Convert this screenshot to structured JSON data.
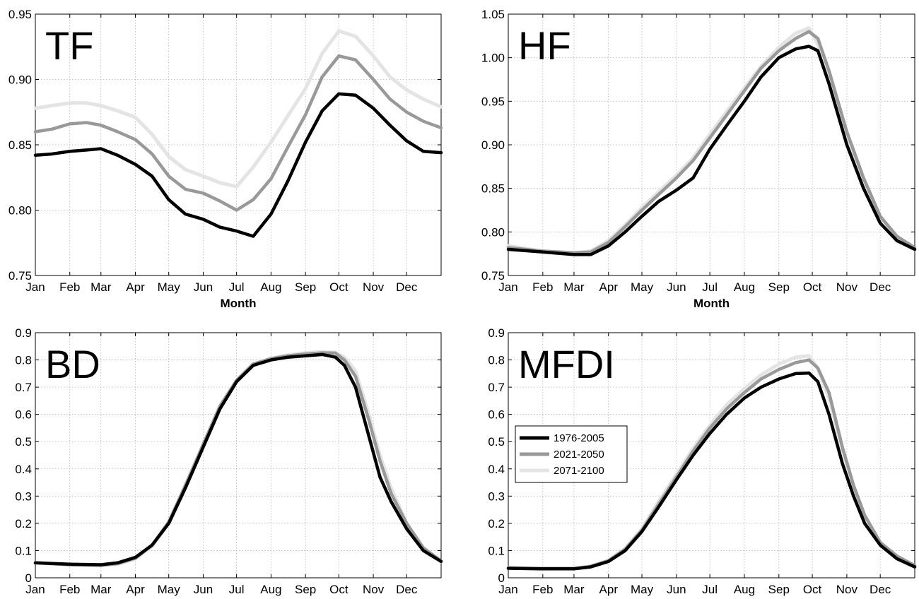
{
  "chart_data": [
    {
      "type": "line",
      "panel_label": "TF",
      "xlabel": "Month",
      "ylabel": "",
      "x_ticks": [
        "Jan",
        "Feb",
        "Mar",
        "Apr",
        "May",
        "Jun",
        "Jul",
        "Aug",
        "Sep",
        "Oct",
        "Nov",
        "Dec"
      ],
      "ylim": [
        0.75,
        0.95
      ],
      "y_ticks": [
        "0.75",
        "0.80",
        "0.85",
        "0.90",
        "0.95"
      ],
      "grid": true,
      "series": [
        {
          "name": "1976-2005",
          "color": "#000000",
          "x": [
            0,
            15,
            31,
            46,
            59,
            74,
            90,
            105,
            120,
            135,
            151,
            166,
            181,
            196,
            212,
            227,
            243,
            258,
            273,
            288,
            304,
            319,
            334,
            349,
            365
          ],
          "y": [
            0.842,
            0.843,
            0.845,
            0.846,
            0.847,
            0.842,
            0.835,
            0.826,
            0.808,
            0.797,
            0.793,
            0.787,
            0.784,
            0.78,
            0.797,
            0.822,
            0.852,
            0.876,
            0.889,
            0.888,
            0.878,
            0.865,
            0.853,
            0.845,
            0.844
          ]
        },
        {
          "name": "2021-2050",
          "color": "#999999",
          "x": [
            0,
            15,
            31,
            46,
            59,
            74,
            90,
            105,
            120,
            135,
            151,
            166,
            181,
            196,
            212,
            227,
            243,
            258,
            273,
            288,
            304,
            319,
            334,
            349,
            365
          ],
          "y": [
            0.86,
            0.862,
            0.866,
            0.867,
            0.865,
            0.86,
            0.854,
            0.843,
            0.826,
            0.816,
            0.813,
            0.807,
            0.8,
            0.808,
            0.824,
            0.848,
            0.873,
            0.902,
            0.918,
            0.915,
            0.9,
            0.885,
            0.875,
            0.868,
            0.863
          ]
        },
        {
          "name": "2071-2100",
          "color": "#e4e4e4",
          "x": [
            0,
            15,
            31,
            46,
            59,
            74,
            90,
            105,
            120,
            135,
            151,
            166,
            181,
            196,
            212,
            227,
            243,
            258,
            273,
            288,
            304,
            319,
            334,
            349,
            365
          ],
          "y": [
            0.878,
            0.88,
            0.882,
            0.882,
            0.88,
            0.876,
            0.871,
            0.858,
            0.841,
            0.831,
            0.826,
            0.821,
            0.818,
            0.833,
            0.852,
            0.872,
            0.893,
            0.92,
            0.937,
            0.933,
            0.918,
            0.902,
            0.892,
            0.885,
            0.879
          ]
        }
      ]
    },
    {
      "type": "line",
      "panel_label": "HF",
      "xlabel": "Month",
      "ylabel": "",
      "x_ticks": [
        "Jan",
        "Feb",
        "Mar",
        "Apr",
        "May",
        "Jun",
        "Jul",
        "Aug",
        "Sep",
        "Oct",
        "Nov",
        "Dec"
      ],
      "ylim": [
        0.75,
        1.05
      ],
      "y_ticks": [
        "0.75",
        "0.80",
        "0.85",
        "0.90",
        "0.95",
        "1.00",
        "1.05"
      ],
      "grid": true,
      "series": [
        {
          "name": "1976-2005",
          "color": "#000000",
          "x": [
            0,
            31,
            59,
            74,
            90,
            105,
            120,
            135,
            151,
            166,
            181,
            196,
            212,
            227,
            243,
            258,
            270,
            278,
            288,
            304,
            319,
            334,
            349,
            365
          ],
          "y": [
            0.78,
            0.777,
            0.774,
            0.774,
            0.784,
            0.8,
            0.818,
            0.835,
            0.848,
            0.862,
            0.895,
            0.922,
            0.95,
            0.978,
            1.0,
            1.01,
            1.013,
            1.008,
            0.97,
            0.9,
            0.85,
            0.81,
            0.79,
            0.78
          ]
        },
        {
          "name": "2021-2050",
          "color": "#999999",
          "x": [
            0,
            31,
            59,
            74,
            90,
            105,
            120,
            135,
            151,
            166,
            181,
            196,
            212,
            227,
            243,
            258,
            270,
            278,
            288,
            304,
            319,
            334,
            349,
            365
          ],
          "y": [
            0.782,
            0.778,
            0.776,
            0.777,
            0.788,
            0.806,
            0.825,
            0.843,
            0.862,
            0.882,
            0.908,
            0.934,
            0.962,
            0.988,
            1.008,
            1.022,
            1.03,
            1.022,
            0.985,
            0.915,
            0.862,
            0.818,
            0.795,
            0.782
          ]
        },
        {
          "name": "2071-2100",
          "color": "#e4e4e4",
          "x": [
            0,
            31,
            59,
            74,
            90,
            105,
            120,
            135,
            151,
            166,
            181,
            196,
            212,
            227,
            243,
            258,
            270,
            278,
            288,
            304,
            319,
            334,
            349,
            365
          ],
          "y": [
            0.784,
            0.778,
            0.776,
            0.778,
            0.79,
            0.808,
            0.828,
            0.846,
            0.865,
            0.885,
            0.912,
            0.938,
            0.965,
            0.99,
            1.012,
            1.028,
            1.034,
            1.015,
            0.978,
            0.908,
            0.858,
            0.814,
            0.79,
            0.78
          ]
        }
      ]
    },
    {
      "type": "line",
      "panel_label": "BD",
      "xlabel": "",
      "ylabel": "",
      "x_ticks": [
        "Jan",
        "Feb",
        "Mar",
        "Apr",
        "May",
        "Jun",
        "Jul",
        "Aug",
        "Sep",
        "Oct",
        "Nov",
        "Dec"
      ],
      "ylim": [
        0,
        0.9
      ],
      "y_ticks": [
        "0",
        "0.1",
        "0.2",
        "0.3",
        "0.4",
        "0.5",
        "0.6",
        "0.7",
        "0.8",
        "0.9"
      ],
      "grid": true,
      "series": [
        {
          "name": "1976-2005",
          "color": "#000000",
          "x": [
            0,
            31,
            59,
            74,
            90,
            105,
            120,
            135,
            151,
            166,
            181,
            196,
            212,
            227,
            243,
            258,
            270,
            278,
            288,
            300,
            310,
            320,
            334,
            349,
            365
          ],
          "y": [
            0.055,
            0.05,
            0.048,
            0.055,
            0.075,
            0.12,
            0.2,
            0.33,
            0.48,
            0.62,
            0.72,
            0.78,
            0.8,
            0.81,
            0.815,
            0.82,
            0.81,
            0.78,
            0.7,
            0.52,
            0.37,
            0.28,
            0.18,
            0.1,
            0.06
          ]
        },
        {
          "name": "2021-2050",
          "color": "#999999",
          "x": [
            0,
            31,
            59,
            74,
            90,
            105,
            120,
            135,
            151,
            166,
            181,
            196,
            212,
            227,
            243,
            258,
            270,
            278,
            288,
            300,
            310,
            320,
            334,
            349,
            365
          ],
          "y": [
            0.055,
            0.048,
            0.046,
            0.052,
            0.072,
            0.12,
            0.205,
            0.34,
            0.49,
            0.63,
            0.725,
            0.785,
            0.805,
            0.815,
            0.822,
            0.826,
            0.825,
            0.8,
            0.74,
            0.58,
            0.43,
            0.31,
            0.2,
            0.11,
            0.062
          ]
        },
        {
          "name": "2071-2100",
          "color": "#e4e4e4",
          "x": [
            0,
            31,
            59,
            74,
            90,
            105,
            120,
            135,
            151,
            166,
            181,
            196,
            212,
            227,
            243,
            258,
            270,
            278,
            288,
            300,
            310,
            320,
            334,
            349,
            365
          ],
          "y": [
            0.055,
            0.048,
            0.046,
            0.05,
            0.07,
            0.115,
            0.2,
            0.335,
            0.485,
            0.625,
            0.725,
            0.785,
            0.805,
            0.818,
            0.826,
            0.83,
            0.828,
            0.81,
            0.76,
            0.6,
            0.45,
            0.33,
            0.2,
            0.1,
            0.06
          ]
        }
      ]
    },
    {
      "type": "line",
      "panel_label": "MFDI",
      "xlabel": "",
      "ylabel": "",
      "x_ticks": [
        "Jan",
        "Feb",
        "Mar",
        "Apr",
        "May",
        "Jun",
        "Jul",
        "Aug",
        "Sep",
        "Oct",
        "Nov",
        "Dec"
      ],
      "ylim": [
        0,
        0.9
      ],
      "y_ticks": [
        "0",
        "0.1",
        "0.2",
        "0.3",
        "0.4",
        "0.5",
        "0.6",
        "0.7",
        "0.8",
        "0.9"
      ],
      "grid": true,
      "legend": {
        "position": "center-left",
        "entries": [
          "1976-2005",
          "2021-2050",
          "2071-2100"
        ]
      },
      "series": [
        {
          "name": "1976-2005",
          "color": "#000000",
          "x": [
            0,
            31,
            59,
            74,
            90,
            105,
            120,
            135,
            151,
            166,
            181,
            196,
            212,
            227,
            243,
            258,
            270,
            278,
            288,
            300,
            310,
            320,
            334,
            349,
            365
          ],
          "y": [
            0.035,
            0.033,
            0.033,
            0.04,
            0.06,
            0.1,
            0.17,
            0.26,
            0.36,
            0.45,
            0.53,
            0.6,
            0.66,
            0.7,
            0.73,
            0.75,
            0.752,
            0.72,
            0.6,
            0.42,
            0.3,
            0.2,
            0.12,
            0.07,
            0.04
          ]
        },
        {
          "name": "2021-2050",
          "color": "#999999",
          "x": [
            0,
            31,
            59,
            74,
            90,
            105,
            120,
            135,
            151,
            166,
            181,
            196,
            212,
            227,
            243,
            258,
            270,
            278,
            288,
            300,
            310,
            320,
            334,
            349,
            365
          ],
          "y": [
            0.036,
            0.034,
            0.034,
            0.042,
            0.063,
            0.105,
            0.175,
            0.27,
            0.37,
            0.465,
            0.55,
            0.62,
            0.68,
            0.73,
            0.765,
            0.79,
            0.8,
            0.77,
            0.68,
            0.48,
            0.34,
            0.23,
            0.13,
            0.08,
            0.045
          ]
        },
        {
          "name": "2071-2100",
          "color": "#e4e4e4",
          "x": [
            0,
            31,
            59,
            74,
            90,
            105,
            120,
            135,
            151,
            166,
            181,
            196,
            212,
            227,
            243,
            258,
            270,
            278,
            288,
            300,
            310,
            320,
            334,
            349,
            365
          ],
          "y": [
            0.037,
            0.035,
            0.035,
            0.043,
            0.064,
            0.107,
            0.18,
            0.28,
            0.38,
            0.475,
            0.56,
            0.635,
            0.695,
            0.745,
            0.785,
            0.81,
            0.815,
            0.77,
            0.66,
            0.47,
            0.33,
            0.22,
            0.13,
            0.07,
            0.04
          ]
        }
      ]
    }
  ]
}
